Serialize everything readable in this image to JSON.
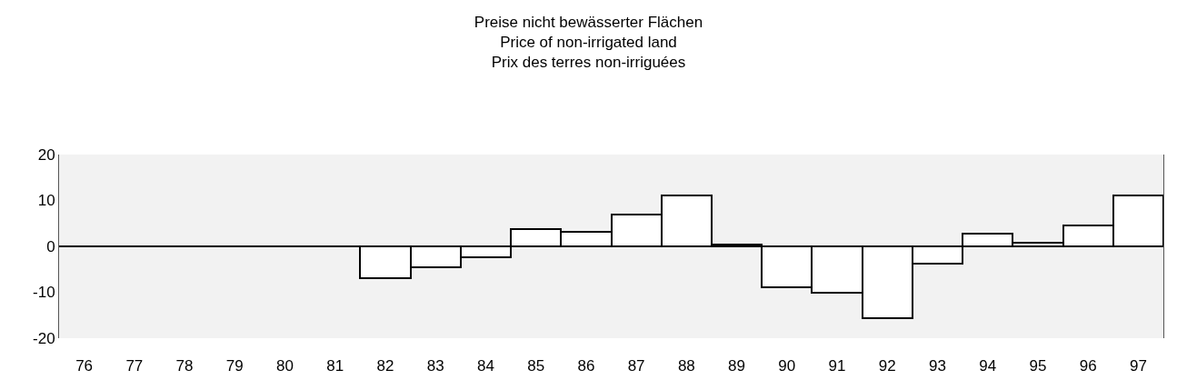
{
  "chart_data": {
    "type": "bar",
    "title": "Preise nicht bewässerter Flächen\nPrice of non-irrigated land\nPrix des terres non-irriguées",
    "categories": [
      "76",
      "77",
      "78",
      "79",
      "80",
      "81",
      "82",
      "83",
      "84",
      "85",
      "86",
      "87",
      "88",
      "89",
      "90",
      "91",
      "92",
      "93",
      "94",
      "95",
      "96",
      "97"
    ],
    "values": [
      null,
      null,
      null,
      null,
      null,
      null,
      -7,
      -4.5,
      -2.3,
      3.7,
      3.1,
      7,
      11,
      0.3,
      -9,
      -10,
      -15.6,
      -3.7,
      2.8,
      0.8,
      4.6,
      11.1
    ],
    "color": "#ffffff",
    "ylim": [
      -20,
      20
    ],
    "yticks": [
      -20,
      -10,
      0,
      10,
      20
    ],
    "ref_lines": [
      {
        "axis": "y",
        "value": 0,
        "color": "#000000"
      }
    ]
  }
}
